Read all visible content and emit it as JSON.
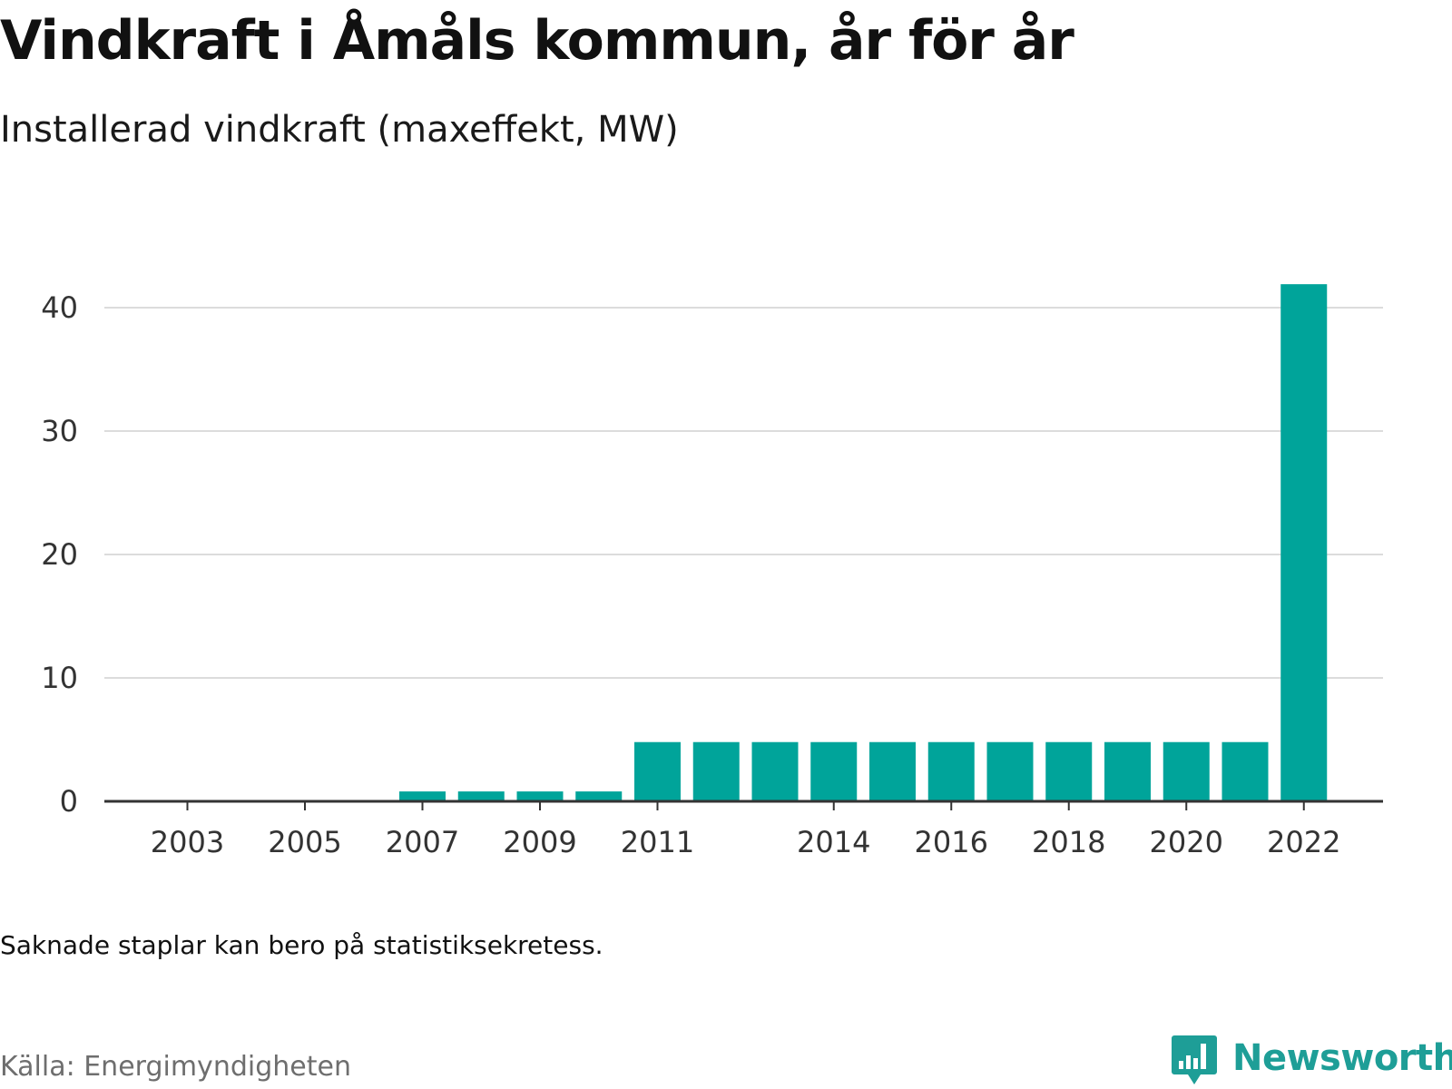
{
  "header": {
    "title": "Vindkraft i Åmåls kommun, år för år",
    "subtitle": "Installerad vindkraft (maxeffekt, MW)"
  },
  "footer": {
    "note": "Saknade staplar kan bero på statistiksekretess.",
    "source": "Källa: Energimyndigheten",
    "brand": "Newsworthy",
    "brand_icon": "bar-chart-speech-bubble-icon"
  },
  "colors": {
    "bar": "#00a49a",
    "grid": "#dcdcdc",
    "axis": "#333333",
    "brand": "#1e9e97"
  },
  "chart_data": {
    "type": "bar",
    "categories": [
      "2003",
      "2004",
      "2005",
      "2006",
      "2007",
      "2008",
      "2009",
      "2010",
      "2011",
      "2012",
      "2013",
      "2014",
      "2015",
      "2016",
      "2017",
      "2018",
      "2019",
      "2020",
      "2021",
      "2022"
    ],
    "x_tick_labels": [
      "2003",
      "2005",
      "2007",
      "2009",
      "2011",
      "2014",
      "2016",
      "2018",
      "2020",
      "2022"
    ],
    "values": [
      0,
      0,
      0,
      0,
      0.8,
      0.8,
      0.8,
      0.8,
      4.8,
      4.8,
      4.8,
      4.8,
      4.8,
      4.8,
      4.8,
      4.8,
      4.8,
      4.8,
      4.8,
      41.9
    ],
    "y_ticks": [
      0,
      10,
      20,
      30,
      40
    ],
    "ylim": [
      0,
      42
    ],
    "grid": true,
    "legend": "none",
    "xlabel": "",
    "ylabel": ""
  }
}
